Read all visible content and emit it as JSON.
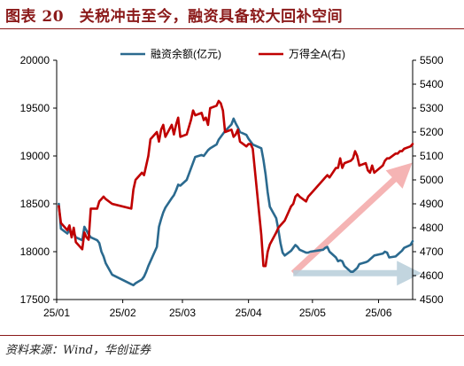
{
  "title": "图表 20　关税冲击至今，融资具备较大回补空间",
  "source": "资料来源：Wind，华创证券",
  "chart_data": {
    "type": "line",
    "legend_position": "top-center",
    "grid": false,
    "series": [
      {
        "name": "融资余额(亿元)",
        "axis": "left",
        "color": "#2B6A8F",
        "points": [
          [
            "2025-01-02",
            18500
          ],
          [
            "2025-01-03",
            18240
          ],
          [
            "2025-01-06",
            18190
          ],
          [
            "2025-01-07",
            18230
          ],
          [
            "2025-01-08",
            18170
          ],
          [
            "2025-01-09",
            18200
          ],
          [
            "2025-01-10",
            18150
          ],
          [
            "2025-01-13",
            18120
          ],
          [
            "2025-01-14",
            18260
          ],
          [
            "2025-01-15",
            18220
          ],
          [
            "2025-01-16",
            18180
          ],
          [
            "2025-01-17",
            18150
          ],
          [
            "2025-01-20",
            18120
          ],
          [
            "2025-01-21",
            18090
          ],
          [
            "2025-01-22",
            18000
          ],
          [
            "2025-01-23",
            17950
          ],
          [
            "2025-01-24",
            17880
          ],
          [
            "2025-01-27",
            17760
          ],
          [
            "2025-02-05",
            17660
          ],
          [
            "2025-02-06",
            17650
          ],
          [
            "2025-02-07",
            17670
          ],
          [
            "2025-02-10",
            17710
          ],
          [
            "2025-02-11",
            17740
          ],
          [
            "2025-02-12",
            17790
          ],
          [
            "2025-02-13",
            17850
          ],
          [
            "2025-02-14",
            17900
          ],
          [
            "2025-02-17",
            18050
          ],
          [
            "2025-02-18",
            18260
          ],
          [
            "2025-02-19",
            18340
          ],
          [
            "2025-02-20",
            18410
          ],
          [
            "2025-02-21",
            18460
          ],
          [
            "2025-02-24",
            18560
          ],
          [
            "2025-02-25",
            18590
          ],
          [
            "2025-02-26",
            18640
          ],
          [
            "2025-02-27",
            18700
          ],
          [
            "2025-02-28",
            18690
          ],
          [
            "2025-03-03",
            18750
          ],
          [
            "2025-03-04",
            18810
          ],
          [
            "2025-03-05",
            18870
          ],
          [
            "2025-03-06",
            18930
          ],
          [
            "2025-03-07",
            18990
          ],
          [
            "2025-03-10",
            19010
          ],
          [
            "2025-03-11",
            19000
          ],
          [
            "2025-03-12",
            19030
          ],
          [
            "2025-03-13",
            19060
          ],
          [
            "2025-03-14",
            19080
          ],
          [
            "2025-03-17",
            19120
          ],
          [
            "2025-03-18",
            19170
          ],
          [
            "2025-03-19",
            19200
          ],
          [
            "2025-03-20",
            19230
          ],
          [
            "2025-03-21",
            19260
          ],
          [
            "2025-03-24",
            19330
          ],
          [
            "2025-03-25",
            19390
          ],
          [
            "2025-03-26",
            19340
          ],
          [
            "2025-03-27",
            19300
          ],
          [
            "2025-03-28",
            19250
          ],
          [
            "2025-03-31",
            19220
          ],
          [
            "2025-04-01",
            19180
          ],
          [
            "2025-04-02",
            19150
          ],
          [
            "2025-04-03",
            19120
          ],
          [
            "2025-04-07",
            19080
          ],
          [
            "2025-04-08",
            18960
          ],
          [
            "2025-04-09",
            18810
          ],
          [
            "2025-04-10",
            18620
          ],
          [
            "2025-04-11",
            18470
          ],
          [
            "2025-04-14",
            18350
          ],
          [
            "2025-04-15",
            18230
          ],
          [
            "2025-04-16",
            18090
          ],
          [
            "2025-04-17",
            17990
          ],
          [
            "2025-04-18",
            17960
          ],
          [
            "2025-04-21",
            18010
          ],
          [
            "2025-04-22",
            18040
          ],
          [
            "2025-04-23",
            18070
          ],
          [
            "2025-04-24",
            18050
          ],
          [
            "2025-04-25",
            18020
          ],
          [
            "2025-04-28",
            17990
          ],
          [
            "2025-04-29",
            17990
          ],
          [
            "2025-04-30",
            18000
          ],
          [
            "2025-05-06",
            18020
          ],
          [
            "2025-05-07",
            18040
          ],
          [
            "2025-05-08",
            18050
          ],
          [
            "2025-05-09",
            18000
          ],
          [
            "2025-05-12",
            17940
          ],
          [
            "2025-05-13",
            17900
          ],
          [
            "2025-05-14",
            17910
          ],
          [
            "2025-05-15",
            17900
          ],
          [
            "2025-05-16",
            17850
          ],
          [
            "2025-05-19",
            17790
          ],
          [
            "2025-05-20",
            17790
          ],
          [
            "2025-05-21",
            17810
          ],
          [
            "2025-05-22",
            17830
          ],
          [
            "2025-05-23",
            17870
          ],
          [
            "2025-05-26",
            17890
          ],
          [
            "2025-05-27",
            17900
          ],
          [
            "2025-05-28",
            17920
          ],
          [
            "2025-05-29",
            17940
          ],
          [
            "2025-05-30",
            17960
          ],
          [
            "2025-06-03",
            17980
          ],
          [
            "2025-06-04",
            18000
          ],
          [
            "2025-06-05",
            17990
          ],
          [
            "2025-06-06",
            17940
          ],
          [
            "2025-06-09",
            17950
          ],
          [
            "2025-06-10",
            17970
          ],
          [
            "2025-06-11",
            17990
          ],
          [
            "2025-06-12",
            18010
          ],
          [
            "2025-06-13",
            18040
          ],
          [
            "2025-06-16",
            18070
          ],
          [
            "2025-06-17",
            18110
          ]
        ]
      },
      {
        "name": "万得全A(右)",
        "axis": "right",
        "color": "#C00000",
        "points": [
          [
            "2025-01-02",
            4890
          ],
          [
            "2025-01-03",
            4820
          ],
          [
            "2025-01-06",
            4790
          ],
          [
            "2025-01-07",
            4810
          ],
          [
            "2025-01-08",
            4760
          ],
          [
            "2025-01-09",
            4800
          ],
          [
            "2025-01-10",
            4740
          ],
          [
            "2025-01-13",
            4710
          ],
          [
            "2025-01-14",
            4780
          ],
          [
            "2025-01-15",
            4760
          ],
          [
            "2025-01-16",
            4750
          ],
          [
            "2025-01-17",
            4880
          ],
          [
            "2025-01-20",
            4880
          ],
          [
            "2025-01-21",
            4910
          ],
          [
            "2025-01-22",
            4920
          ],
          [
            "2025-01-23",
            4930
          ],
          [
            "2025-01-24",
            4920
          ],
          [
            "2025-01-27",
            4900
          ],
          [
            "2025-02-05",
            4880
          ],
          [
            "2025-02-06",
            4960
          ],
          [
            "2025-02-07",
            5000
          ],
          [
            "2025-02-10",
            5030
          ],
          [
            "2025-02-11",
            5020
          ],
          [
            "2025-02-12",
            5060
          ],
          [
            "2025-02-13",
            5100
          ],
          [
            "2025-02-14",
            5170
          ],
          [
            "2025-02-17",
            5200
          ],
          [
            "2025-02-18",
            5160
          ],
          [
            "2025-02-19",
            5210
          ],
          [
            "2025-02-20",
            5230
          ],
          [
            "2025-02-21",
            5180
          ],
          [
            "2025-02-24",
            5230
          ],
          [
            "2025-02-25",
            5190
          ],
          [
            "2025-02-26",
            5230
          ],
          [
            "2025-02-27",
            5260
          ],
          [
            "2025-02-28",
            5180
          ],
          [
            "2025-03-03",
            5190
          ],
          [
            "2025-03-04",
            5220
          ],
          [
            "2025-03-05",
            5250
          ],
          [
            "2025-03-06",
            5290
          ],
          [
            "2025-03-07",
            5270
          ],
          [
            "2025-03-10",
            5280
          ],
          [
            "2025-03-11",
            5250
          ],
          [
            "2025-03-12",
            5260
          ],
          [
            "2025-03-13",
            5230
          ],
          [
            "2025-03-14",
            5300
          ],
          [
            "2025-03-17",
            5310
          ],
          [
            "2025-03-18",
            5330
          ],
          [
            "2025-03-19",
            5320
          ],
          [
            "2025-03-20",
            5290
          ],
          [
            "2025-03-21",
            5200
          ],
          [
            "2025-03-24",
            5210
          ],
          [
            "2025-03-25",
            5180
          ],
          [
            "2025-03-26",
            5190
          ],
          [
            "2025-03-27",
            5210
          ],
          [
            "2025-03-28",
            5160
          ],
          [
            "2025-03-31",
            5140
          ],
          [
            "2025-04-01",
            5150
          ],
          [
            "2025-04-02",
            5150
          ],
          [
            "2025-04-03",
            5130
          ],
          [
            "2025-04-07",
            4770
          ],
          [
            "2025-04-08",
            4640
          ],
          [
            "2025-04-09",
            4640
          ],
          [
            "2025-04-10",
            4700
          ],
          [
            "2025-04-11",
            4730
          ],
          [
            "2025-04-14",
            4780
          ],
          [
            "2025-04-15",
            4800
          ],
          [
            "2025-04-16",
            4810
          ],
          [
            "2025-04-17",
            4820
          ],
          [
            "2025-04-18",
            4830
          ],
          [
            "2025-04-21",
            4890
          ],
          [
            "2025-04-22",
            4900
          ],
          [
            "2025-04-23",
            4930
          ],
          [
            "2025-04-24",
            4940
          ],
          [
            "2025-04-25",
            4930
          ],
          [
            "2025-04-28",
            4910
          ],
          [
            "2025-04-29",
            4930
          ],
          [
            "2025-04-30",
            4940
          ],
          [
            "2025-05-06",
            5000
          ],
          [
            "2025-05-07",
            5010
          ],
          [
            "2025-05-08",
            5020
          ],
          [
            "2025-05-09",
            5010
          ],
          [
            "2025-05-12",
            5050
          ],
          [
            "2025-05-13",
            5050
          ],
          [
            "2025-05-14",
            5090
          ],
          [
            "2025-05-15",
            5050
          ],
          [
            "2025-05-16",
            5070
          ],
          [
            "2025-05-19",
            5080
          ],
          [
            "2025-05-20",
            5090
          ],
          [
            "2025-05-21",
            5120
          ],
          [
            "2025-05-22",
            5100
          ],
          [
            "2025-05-23",
            5060
          ],
          [
            "2025-05-26",
            5070
          ],
          [
            "2025-05-27",
            5040
          ],
          [
            "2025-05-28",
            5030
          ],
          [
            "2025-05-29",
            5060
          ],
          [
            "2025-05-30",
            5030
          ],
          [
            "2025-06-03",
            5060
          ],
          [
            "2025-06-04",
            5080
          ],
          [
            "2025-06-05",
            5090
          ],
          [
            "2025-06-06",
            5090
          ],
          [
            "2025-06-09",
            5110
          ],
          [
            "2025-06-10",
            5110
          ],
          [
            "2025-06-11",
            5120
          ],
          [
            "2025-06-12",
            5120
          ],
          [
            "2025-06-13",
            5130
          ],
          [
            "2025-06-16",
            5140
          ],
          [
            "2025-06-17",
            5150
          ]
        ]
      }
    ],
    "x_axis": {
      "min": "2025-01-01",
      "max": "2025-06-17",
      "tick_labels": [
        "25/01",
        "25/02",
        "25/03",
        "25/04",
        "25/05",
        "25/06"
      ],
      "ticks": [
        "2025-01-01",
        "2025-02-01",
        "2025-03-01",
        "2025-04-01",
        "2025-05-01",
        "2025-06-01"
      ]
    },
    "y_left": {
      "min": 17500,
      "max": 20000,
      "ticks": [
        17500,
        18000,
        18500,
        19000,
        19500,
        20000
      ],
      "tick_labels": [
        "17500",
        "18000",
        "18500",
        "19000",
        "19500",
        "20000"
      ]
    },
    "y_right": {
      "min": 4500,
      "max": 5500,
      "ticks": [
        4500,
        4600,
        4700,
        4800,
        4900,
        5000,
        5100,
        5200,
        5300,
        5400,
        5500
      ],
      "tick_labels": [
        "4500",
        "4600",
        "4700",
        "4800",
        "4900",
        "5000",
        "5100",
        "5200",
        "5300",
        "5400",
        "5500"
      ]
    },
    "annotations": [
      {
        "kind": "arrow",
        "color": "#F4A7A7",
        "from": [
          "2025-04-22",
          4610
        ],
        "to": [
          "2025-06-13",
          5040
        ],
        "axis": "right"
      },
      {
        "kind": "arrow",
        "color": "#B8CEDA",
        "from": [
          "2025-04-22",
          4610
        ],
        "to": [
          "2025-06-16",
          4610
        ],
        "axis": "right"
      }
    ]
  }
}
